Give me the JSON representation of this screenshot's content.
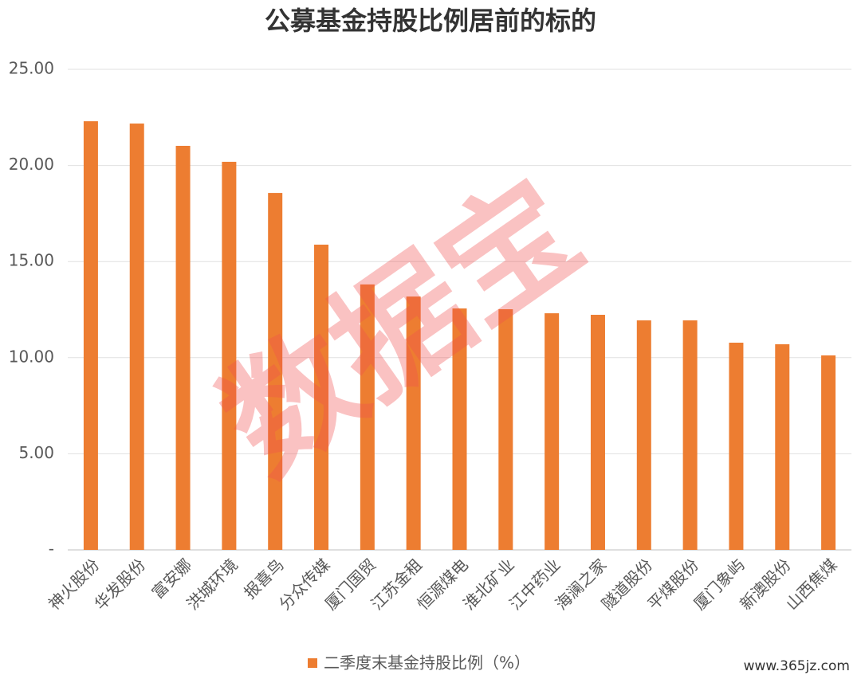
{
  "chart_data": {
    "type": "bar",
    "title": "公募基金持股比例居前的标的",
    "categories": [
      "神火股份",
      "华发股份",
      "富安娜",
      "洪城环境",
      "报喜鸟",
      "分众传媒",
      "厦门国贸",
      "江苏金租",
      "恒源煤电",
      "淮北矿业",
      "江中药业",
      "海澜之家",
      "隧道股份",
      "平煤股份",
      "厦门象屿",
      "新澳股份",
      "山西焦煤"
    ],
    "series": [
      {
        "name": "二季度末基金持股比例（%）",
        "color": "#ed7d31",
        "values": [
          22.3,
          22.18,
          21.02,
          20.19,
          18.57,
          15.88,
          13.81,
          13.18,
          12.56,
          12.52,
          12.31,
          12.23,
          11.94,
          11.94,
          10.78,
          10.7,
          10.12
        ]
      }
    ],
    "ylim": [
      0,
      25
    ],
    "yticks": [
      {
        "value": 0,
        "label": "-"
      },
      {
        "value": 5,
        "label": "5.00"
      },
      {
        "value": 10,
        "label": "10.00"
      },
      {
        "value": 15,
        "label": "15.00"
      },
      {
        "value": 20,
        "label": "20.00"
      },
      {
        "value": 25,
        "label": "25.00"
      }
    ],
    "grid": true,
    "legend": "bottom",
    "watermark": "数据宝",
    "source": "www.365jz.com"
  }
}
